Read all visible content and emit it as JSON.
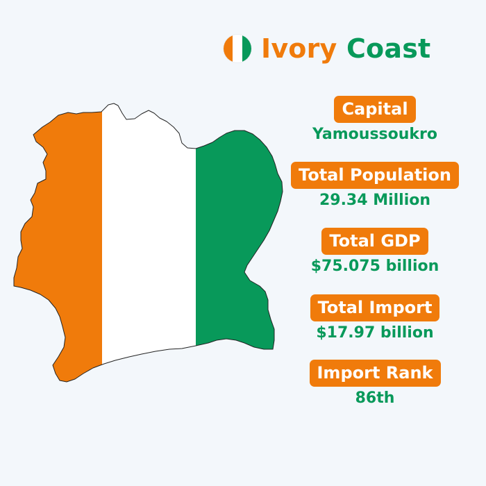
{
  "title": {
    "word1": "Ivory",
    "word2": "Coast",
    "word1_color": "#f07b0b",
    "word2_color": "#08995a"
  },
  "flag": {
    "colors": [
      "#f07b0b",
      "#ffffff",
      "#08995a"
    ],
    "icon": "ivory-coast-flag-icon"
  },
  "map": {
    "icon": "ivory-coast-map-flag-icon",
    "colors": [
      "#f07b0b",
      "#ffffff",
      "#08995a"
    ]
  },
  "facts": [
    {
      "label": "Capital",
      "value": "Yamoussoukro"
    },
    {
      "label": "Total Population",
      "value": "29.34 Million"
    },
    {
      "label": "Total GDP",
      "value": "$75.075 billion"
    },
    {
      "label": "Total Import",
      "value": "$17.97 billion"
    },
    {
      "label": "Import Rank",
      "value": "86th"
    }
  ],
  "colors": {
    "background": "#f3f7fb",
    "accent_orange": "#f07b0b",
    "accent_green": "#08995a"
  }
}
